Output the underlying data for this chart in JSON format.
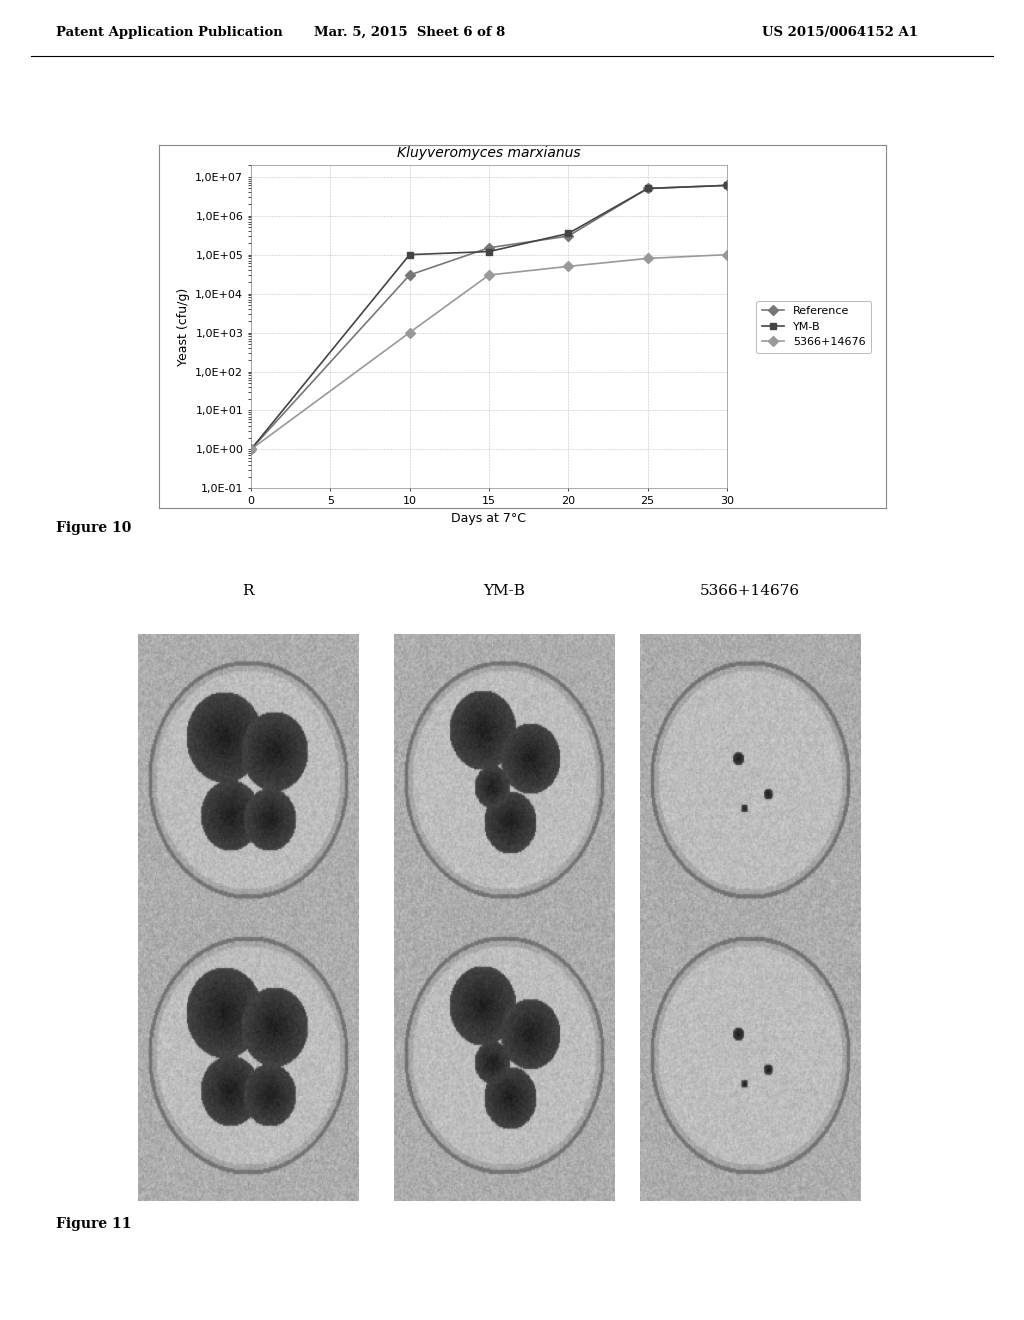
{
  "header_left": "Patent Application Publication",
  "header_mid": "Mar. 5, 2015  Sheet 6 of 8",
  "header_right": "US 2015/0064152 A1",
  "chart_title": "Kluyveromyces marxianus",
  "ylabel": "Yeast (cfu/g)",
  "xlabel": "Days at 7°C",
  "series_names": [
    "Reference",
    "YM-B",
    "5366+14676"
  ],
  "series_x": [
    [
      0,
      10,
      15,
      20,
      25,
      30
    ],
    [
      0,
      10,
      15,
      20,
      25,
      30
    ],
    [
      0,
      10,
      15,
      20,
      25,
      30
    ]
  ],
  "series_y": [
    [
      1.0,
      30000.0,
      150000.0,
      300000.0,
      5000000.0,
      6000000.0
    ],
    [
      1.0,
      100000.0,
      120000.0,
      350000.0,
      5000000.0,
      6000000.0
    ],
    [
      1.0,
      1000.0,
      30000.0,
      50000.0,
      80000.0,
      100000.0
    ]
  ],
  "series_colors": [
    "#777777",
    "#444444",
    "#999999"
  ],
  "series_markers": [
    "D",
    "s",
    "D"
  ],
  "ytick_labels": [
    "1,0E-01",
    "1,0E+00",
    "1,0E+01",
    "1,0E+02",
    "1,0E+03",
    "1,0E+04",
    "1,0E+05",
    "1,0E+06",
    "1,0E+07"
  ],
  "ytick_vals": [
    0.1,
    1.0,
    10.0,
    100.0,
    1000.0,
    10000.0,
    100000.0,
    1000000.0,
    10000000.0
  ],
  "xticks": [
    0,
    5,
    10,
    15,
    20,
    25,
    30
  ],
  "figure10_label": "Figure 10",
  "figure11_label": "Figure 11",
  "image_labels": [
    "R",
    "YM-B",
    "5366+14676"
  ],
  "background_color": "#ffffff"
}
